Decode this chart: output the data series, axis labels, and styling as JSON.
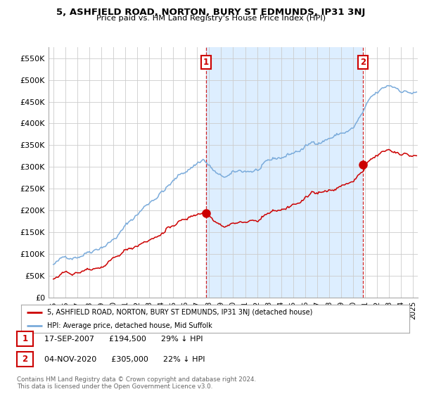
{
  "title": "5, ASHFIELD ROAD, NORTON, BURY ST EDMUNDS, IP31 3NJ",
  "subtitle": "Price paid vs. HM Land Registry's House Price Index (HPI)",
  "ylabel_ticks": [
    "£0",
    "£50K",
    "£100K",
    "£150K",
    "£200K",
    "£250K",
    "£300K",
    "£350K",
    "£400K",
    "£450K",
    "£500K",
    "£550K"
  ],
  "ytick_values": [
    0,
    50000,
    100000,
    150000,
    200000,
    250000,
    300000,
    350000,
    400000,
    450000,
    500000,
    550000
  ],
  "ylim": [
    0,
    575000
  ],
  "xlim_start": 1994.6,
  "xlim_end": 2025.4,
  "hpi_color": "#7aabdb",
  "price_color": "#cc0000",
  "shade_color": "#ddeeff",
  "transaction1_date": 2007.72,
  "transaction1_price": 194500,
  "transaction1_label": "1",
  "transaction2_date": 2020.84,
  "transaction2_price": 305000,
  "transaction2_label": "2",
  "legend_line1": "5, ASHFIELD ROAD, NORTON, BURY ST EDMUNDS, IP31 3NJ (detached house)",
  "legend_line2": "HPI: Average price, detached house, Mid Suffolk",
  "table_row1": [
    "1",
    "17-SEP-2007",
    "£194,500",
    "29% ↓ HPI"
  ],
  "table_row2": [
    "2",
    "04-NOV-2020",
    "£305,000",
    "22% ↓ HPI"
  ],
  "footnote": "Contains HM Land Registry data © Crown copyright and database right 2024.\nThis data is licensed under the Open Government Licence v3.0.",
  "background_color": "#ffffff",
  "grid_color": "#cccccc"
}
